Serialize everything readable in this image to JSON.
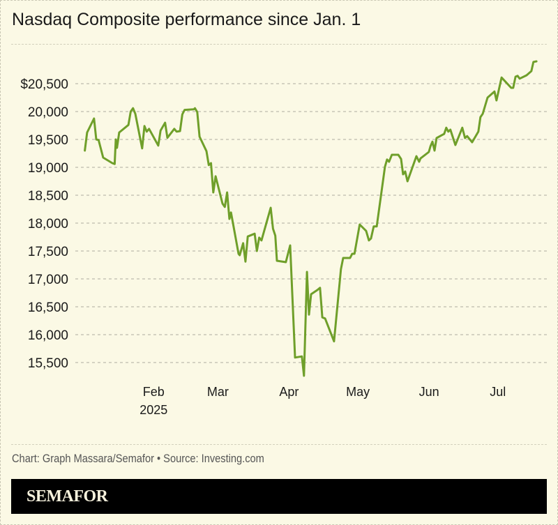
{
  "title": "Nasdaq Composite performance since Jan. 1",
  "footer": {
    "credit": "Chart: Graph Massara/Semafor • Source: Investing.com",
    "brand": "SEMAFOR"
  },
  "colors": {
    "background": "#fbf9e5",
    "line": "#6f9f2a",
    "grid": "#c8c6b6",
    "text": "#1a1a1a",
    "brand_bar": "#000000",
    "brand_text": "#f6f1dc"
  },
  "chart_data": {
    "type": "line",
    "title": "Nasdaq Composite performance since Jan. 1",
    "xlabel": "",
    "ylabel": "",
    "ylim": [
      15000,
      21000
    ],
    "grid": true,
    "y_ticks": [
      {
        "value": 20500,
        "label": "$20,500"
      },
      {
        "value": 20000,
        "label": "20,000"
      },
      {
        "value": 19500,
        "label": "19,500"
      },
      {
        "value": 19000,
        "label": "19,000"
      },
      {
        "value": 18500,
        "label": "18,500"
      },
      {
        "value": 18000,
        "label": "18,000"
      },
      {
        "value": 17500,
        "label": "17,500"
      },
      {
        "value": 17000,
        "label": "17,000"
      },
      {
        "value": 16500,
        "label": "16,500"
      },
      {
        "value": 16000,
        "label": "16,000"
      },
      {
        "value": 15500,
        "label": "15,500"
      }
    ],
    "x_ticks": [
      {
        "day": 31,
        "label": "Feb",
        "sublabel": "2025"
      },
      {
        "day": 59,
        "label": "Mar"
      },
      {
        "day": 90,
        "label": "Apr"
      },
      {
        "day": 120,
        "label": "May"
      },
      {
        "day": 151,
        "label": "Jun"
      },
      {
        "day": 181,
        "label": "Jul"
      }
    ],
    "series": [
      {
        "name": "Nasdaq Composite",
        "points": [
          {
            "day": 1,
            "value": 19300
          },
          {
            "day": 2,
            "value": 19625
          },
          {
            "day": 5,
            "value": 19875
          },
          {
            "day": 6,
            "value": 19500
          },
          {
            "day": 7,
            "value": 19490
          },
          {
            "day": 9,
            "value": 19175
          },
          {
            "day": 13,
            "value": 19075
          },
          {
            "day": 14,
            "value": 19060
          },
          {
            "day": 14.5,
            "value": 19500
          },
          {
            "day": 15,
            "value": 19350
          },
          {
            "day": 16,
            "value": 19625
          },
          {
            "day": 20,
            "value": 19760
          },
          {
            "day": 21,
            "value": 20000
          },
          {
            "day": 22,
            "value": 20060
          },
          {
            "day": 23,
            "value": 19960
          },
          {
            "day": 26,
            "value": 19340
          },
          {
            "day": 27,
            "value": 19740
          },
          {
            "day": 28,
            "value": 19640
          },
          {
            "day": 29,
            "value": 19690
          },
          {
            "day": 33,
            "value": 19390
          },
          {
            "day": 34,
            "value": 19660
          },
          {
            "day": 36,
            "value": 19800
          },
          {
            "day": 37,
            "value": 19530
          },
          {
            "day": 40,
            "value": 19690
          },
          {
            "day": 41,
            "value": 19640
          },
          {
            "day": 42.5,
            "value": 19650
          },
          {
            "day": 43.5,
            "value": 19950
          },
          {
            "day": 44.5,
            "value": 20030
          },
          {
            "day": 48.5,
            "value": 20040
          },
          {
            "day": 49,
            "value": 20060
          },
          {
            "day": 50,
            "value": 19990
          },
          {
            "day": 51,
            "value": 19550
          },
          {
            "day": 54,
            "value": 19290
          },
          {
            "day": 55,
            "value": 19040
          },
          {
            "day": 56,
            "value": 19075
          },
          {
            "day": 57,
            "value": 18550
          },
          {
            "day": 58,
            "value": 18840
          },
          {
            "day": 61,
            "value": 18350
          },
          {
            "day": 62,
            "value": 18290
          },
          {
            "day": 63,
            "value": 18550
          },
          {
            "day": 64,
            "value": 18075
          },
          {
            "day": 64.7,
            "value": 18190
          },
          {
            "day": 68,
            "value": 17450
          },
          {
            "day": 68.5,
            "value": 17425
          },
          {
            "day": 70,
            "value": 17640
          },
          {
            "day": 71,
            "value": 17310
          },
          {
            "day": 72,
            "value": 17760
          },
          {
            "day": 75,
            "value": 17810
          },
          {
            "day": 76,
            "value": 17500
          },
          {
            "day": 77,
            "value": 17740
          },
          {
            "day": 78,
            "value": 17690
          },
          {
            "day": 82,
            "value": 18275
          },
          {
            "day": 83,
            "value": 17900
          },
          {
            "day": 84,
            "value": 17775
          },
          {
            "day": 84.7,
            "value": 17325
          },
          {
            "day": 88.6,
            "value": 17300
          },
          {
            "day": 90.5,
            "value": 17600
          },
          {
            "day": 92.6,
            "value": 15590
          },
          {
            "day": 95.6,
            "value": 15610
          },
          {
            "day": 96.5,
            "value": 15263
          },
          {
            "day": 97.8,
            "value": 17125
          },
          {
            "day": 98.7,
            "value": 16360
          },
          {
            "day": 99.6,
            "value": 16725
          },
          {
            "day": 102.3,
            "value": 16800
          },
          {
            "day": 103.5,
            "value": 16840
          },
          {
            "day": 104.5,
            "value": 16310
          },
          {
            "day": 105.7,
            "value": 16290
          },
          {
            "day": 109.6,
            "value": 15880
          },
          {
            "day": 112.6,
            "value": 17175
          },
          {
            "day": 113.6,
            "value": 17375
          },
          {
            "day": 116.6,
            "value": 17375
          },
          {
            "day": 117.5,
            "value": 17450
          },
          {
            "day": 118.5,
            "value": 17450
          },
          {
            "day": 120.8,
            "value": 17975
          },
          {
            "day": 123.6,
            "value": 17860
          },
          {
            "day": 124.8,
            "value": 17690
          },
          {
            "day": 125.7,
            "value": 17725
          },
          {
            "day": 126.9,
            "value": 17940
          },
          {
            "day": 128.2,
            "value": 17940
          },
          {
            "day": 131.8,
            "value": 19010
          },
          {
            "day": 132.7,
            "value": 19140
          },
          {
            "day": 133.6,
            "value": 19100
          },
          {
            "day": 134.8,
            "value": 19225
          },
          {
            "day": 137.6,
            "value": 19225
          },
          {
            "day": 138.8,
            "value": 19150
          },
          {
            "day": 139.7,
            "value": 18875
          },
          {
            "day": 140.6,
            "value": 18925
          },
          {
            "day": 141.6,
            "value": 18750
          },
          {
            "day": 145.5,
            "value": 19200
          },
          {
            "day": 146.7,
            "value": 19100
          },
          {
            "day": 147.3,
            "value": 19160
          },
          {
            "day": 150.9,
            "value": 19275
          },
          {
            "day": 151.6,
            "value": 19375
          },
          {
            "day": 152.5,
            "value": 19460
          },
          {
            "day": 153.4,
            "value": 19300
          },
          {
            "day": 154.3,
            "value": 19525
          },
          {
            "day": 157.6,
            "value": 19600
          },
          {
            "day": 158.5,
            "value": 19710
          },
          {
            "day": 159.4,
            "value": 19640
          },
          {
            "day": 160.3,
            "value": 19675
          },
          {
            "day": 162.5,
            "value": 19400
          },
          {
            "day": 165.5,
            "value": 19710
          },
          {
            "day": 166.7,
            "value": 19525
          },
          {
            "day": 167.6,
            "value": 19560
          },
          {
            "day": 169.8,
            "value": 19450
          },
          {
            "day": 172.5,
            "value": 19640
          },
          {
            "day": 173.4,
            "value": 19900
          },
          {
            "day": 174.4,
            "value": 19960
          },
          {
            "day": 176.5,
            "value": 20250
          },
          {
            "day": 179.5,
            "value": 20360
          },
          {
            "day": 180.4,
            "value": 20200
          },
          {
            "day": 182.6,
            "value": 20610
          },
          {
            "day": 186.8,
            "value": 20425
          },
          {
            "day": 187.7,
            "value": 20425
          },
          {
            "day": 188.7,
            "value": 20625
          },
          {
            "day": 189.6,
            "value": 20640
          },
          {
            "day": 190.5,
            "value": 20590
          },
          {
            "day": 193.5,
            "value": 20650
          },
          {
            "day": 195.6,
            "value": 20725
          },
          {
            "day": 196.5,
            "value": 20890
          },
          {
            "day": 197.8,
            "value": 20900
          }
        ]
      }
    ]
  }
}
